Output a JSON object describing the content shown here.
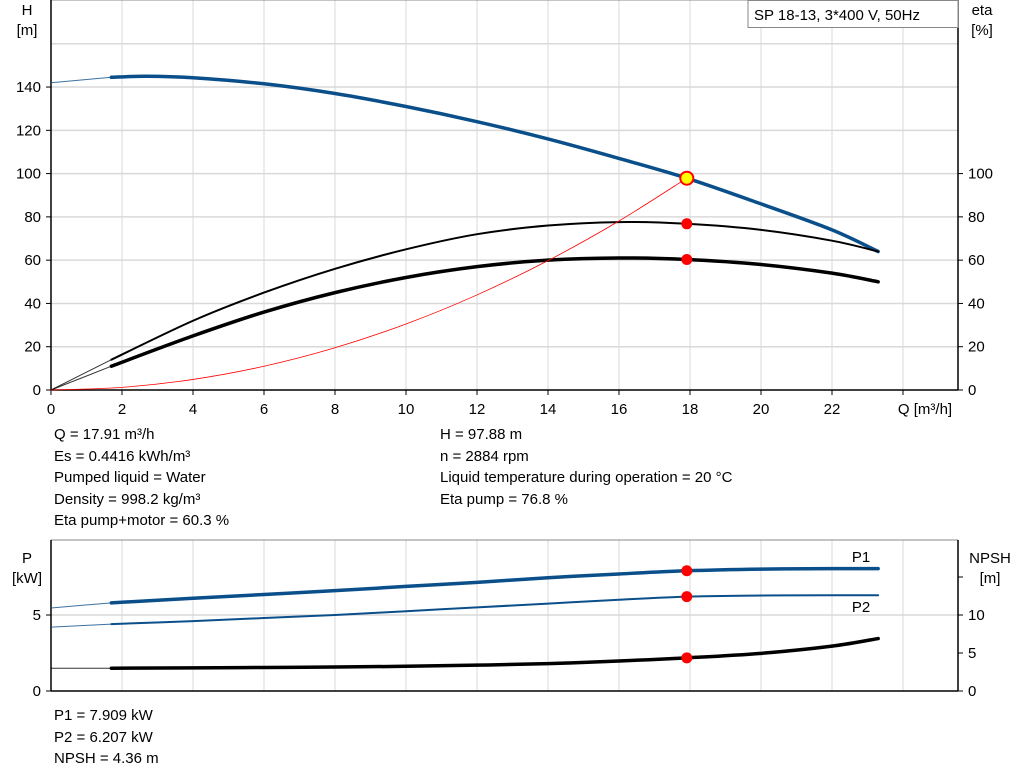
{
  "colors": {
    "blue": "#0b4f8a",
    "black": "#000000",
    "red": "#ff0000",
    "marker_fill": "#ffff00",
    "grid": "#d9d9d9"
  },
  "chart_data": [
    {
      "type": "line",
      "title": "SP 18-13, 3*400 V, 50Hz",
      "xlabel": "Q [m³/h]",
      "ylabel": "H",
      "ylabel_unit": "[m]",
      "y2label": "eta",
      "y2label_unit": "[%]",
      "xlim": [
        0,
        25.5
      ],
      "ylim": [
        0,
        180
      ],
      "y2lim": [
        0,
        180
      ],
      "grid": true,
      "x_ticks": [
        "0",
        "2",
        "4",
        "6",
        "8",
        "10",
        "12",
        "14",
        "16",
        "18",
        "20",
        "22"
      ],
      "y_ticks": [
        "0",
        "20",
        "40",
        "60",
        "80",
        "100",
        "120",
        "140"
      ],
      "y2_ticks": [
        "0",
        "20",
        "40",
        "60",
        "80",
        "100"
      ],
      "series": [
        {
          "key": "H",
          "axis": "left",
          "color": "#0b4f8a",
          "width": 3.5,
          "ext": [
            [
              0,
              142
            ],
            [
              1.7,
              144.5
            ]
          ],
          "points": [
            [
              1.7,
              144.5
            ],
            [
              2.7,
              145
            ],
            [
              4,
              144.3
            ],
            [
              6,
              141.5
            ],
            [
              8,
              137
            ],
            [
              10,
              131
            ],
            [
              12,
              124
            ],
            [
              14,
              116
            ],
            [
              16,
              107
            ],
            [
              17.91,
              97.88
            ],
            [
              20,
              86
            ],
            [
              22,
              74
            ],
            [
              23.3,
              64
            ]
          ]
        },
        {
          "key": "eta_pump",
          "axis": "right",
          "color": "#000000",
          "width": 2,
          "ext": [
            [
              0,
              0
            ],
            [
              1.7,
              14
            ]
          ],
          "points": [
            [
              1.7,
              14
            ],
            [
              4,
              32
            ],
            [
              6,
              45
            ],
            [
              8,
              56
            ],
            [
              10,
              65
            ],
            [
              12,
              72
            ],
            [
              14,
              76
            ],
            [
              16,
              77.6
            ],
            [
              17.91,
              76.8
            ],
            [
              20,
              74
            ],
            [
              22,
              69
            ],
            [
              23.3,
              64
            ]
          ]
        },
        {
          "key": "eta_pump_motor",
          "axis": "right",
          "color": "#000000",
          "width": 3.5,
          "ext": [
            [
              0,
              0
            ],
            [
              1.7,
              11
            ]
          ],
          "points": [
            [
              1.7,
              11
            ],
            [
              4,
              25
            ],
            [
              6,
              36
            ],
            [
              8,
              45
            ],
            [
              10,
              52
            ],
            [
              12,
              57
            ],
            [
              14,
              60
            ],
            [
              16,
              61
            ],
            [
              17.91,
              60.3
            ],
            [
              20,
              58
            ],
            [
              22,
              54
            ],
            [
              23.3,
              50
            ]
          ]
        },
        {
          "key": "system_curve",
          "axis": "left",
          "color": "#ff0000",
          "width": 0.8,
          "points": [
            [
              0,
              0
            ],
            [
              2,
              1.22
            ],
            [
              4,
              4.88
            ],
            [
              6,
              10.98
            ],
            [
              8,
              19.52
            ],
            [
              10,
              30.51
            ],
            [
              12,
              43.93
            ],
            [
              14,
              59.8
            ],
            [
              16,
              78.1
            ],
            [
              17.91,
              97.88
            ]
          ]
        }
      ],
      "markers": [
        {
          "key": "H",
          "q": 17.91,
          "value": 97.88,
          "fill": "#ffff00"
        },
        {
          "key": "eta_pump",
          "q": 17.91,
          "value": 76.8,
          "fill": "#ff0000"
        },
        {
          "key": "eta_pump_motor",
          "q": 17.91,
          "value": 60.3,
          "fill": "#ff0000"
        }
      ]
    },
    {
      "type": "line",
      "ylabel": "P",
      "ylabel_unit": "[kW]",
      "y2label": "NPSH",
      "y2label_unit": "[m]",
      "xlim": [
        0,
        25.5
      ],
      "ylim": [
        0,
        10
      ],
      "y2lim": [
        0,
        20
      ],
      "grid": true,
      "y_ticks": [
        "0",
        "5"
      ],
      "y2_ticks": [
        "0",
        "5",
        "10"
      ],
      "series": [
        {
          "key": "P1",
          "name": "P1",
          "axis": "left",
          "color": "#0b4f8a",
          "width": 3.5,
          "ext": [
            [
              0,
              5.46
            ],
            [
              1.7,
              5.8
            ]
          ],
          "points": [
            [
              1.7,
              5.8
            ],
            [
              4,
              6.1
            ],
            [
              6,
              6.35
            ],
            [
              8,
              6.6
            ],
            [
              10,
              6.88
            ],
            [
              12,
              7.15
            ],
            [
              14,
              7.45
            ],
            [
              16,
              7.7
            ],
            [
              17.91,
              7.909
            ],
            [
              20,
              8.02
            ],
            [
              22,
              8.05
            ],
            [
              23.3,
              8.05
            ]
          ]
        },
        {
          "key": "P2",
          "name": "P2",
          "axis": "left",
          "color": "#0b4f8a",
          "width": 2,
          "ext": [
            [
              0,
              4.2
            ],
            [
              1.7,
              4.4
            ]
          ],
          "points": [
            [
              1.7,
              4.4
            ],
            [
              4,
              4.6
            ],
            [
              6,
              4.8
            ],
            [
              8,
              5.0
            ],
            [
              10,
              5.25
            ],
            [
              12,
              5.5
            ],
            [
              14,
              5.75
            ],
            [
              16,
              6.0
            ],
            [
              17.91,
              6.207
            ],
            [
              20,
              6.28
            ],
            [
              22,
              6.3
            ],
            [
              23.3,
              6.3
            ]
          ]
        },
        {
          "key": "NPSH",
          "axis": "right",
          "color": "#000000",
          "width": 3.5,
          "ext": [
            [
              0,
              3.0
            ],
            [
              1.7,
              3.0
            ]
          ],
          "points": [
            [
              1.7,
              3.0
            ],
            [
              4,
              3.05
            ],
            [
              6,
              3.1
            ],
            [
              8,
              3.15
            ],
            [
              10,
              3.25
            ],
            [
              12,
              3.4
            ],
            [
              14,
              3.6
            ],
            [
              16,
              3.95
            ],
            [
              17.91,
              4.36
            ],
            [
              20,
              4.95
            ],
            [
              22,
              5.9
            ],
            [
              23.3,
              6.9
            ]
          ]
        }
      ],
      "markers": [
        {
          "key": "P1",
          "q": 17.91,
          "value": 7.909,
          "fill": "#ff0000"
        },
        {
          "key": "P2",
          "q": 17.91,
          "value": 6.207,
          "fill": "#ff0000"
        },
        {
          "key": "NPSH",
          "q": 17.91,
          "value": 4.36,
          "fill": "#ff0000"
        }
      ]
    }
  ],
  "info_top": {
    "left": [
      "Q = 17.91 m³/h",
      "Es = 0.4416 kWh/m³",
      "Pumped liquid = Water",
      "Density = 998.2 kg/m³",
      "Eta pump+motor = 60.3 %"
    ],
    "right": [
      "H = 97.88 m",
      "n = 2884 rpm",
      "Liquid temperature during operation = 20 °C",
      "Eta pump = 76.8 %"
    ]
  },
  "info_bottom": [
    "P1 = 7.909 kW",
    "P2 = 6.207 kW",
    "NPSH = 4.36 m"
  ]
}
